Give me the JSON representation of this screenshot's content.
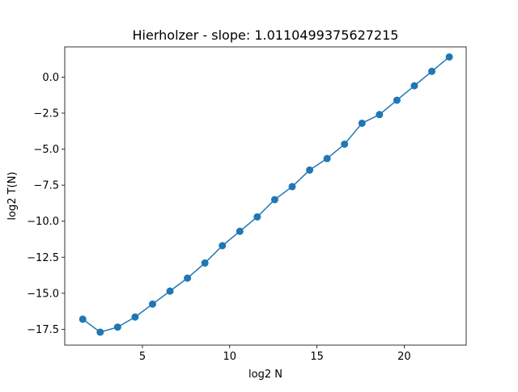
{
  "chart_data": {
    "type": "line",
    "title": "Hierholzer - slope: 1.0110499375627215",
    "xlabel": "log2 N",
    "ylabel": "log2 T(N)",
    "xlim": [
      0.55,
      23.55
    ],
    "ylim": [
      -18.6,
      2.1
    ],
    "xticks": [
      5,
      10,
      15,
      20
    ],
    "yticks": [
      0.0,
      -2.5,
      -5.0,
      -7.5,
      -10.0,
      -12.5,
      -15.0,
      -17.5
    ],
    "xtick_labels": [
      "5",
      "10",
      "15",
      "20"
    ],
    "ytick_labels": [
      "0.0",
      "−2.5",
      "−5.0",
      "−7.5",
      "−10.0",
      "−12.5",
      "−15.0",
      "−17.5"
    ],
    "grid": false,
    "series": [
      {
        "color": "#1f77b4",
        "marker": "circle",
        "x": [
          1.58,
          2.58,
          3.58,
          4.58,
          5.58,
          6.58,
          7.58,
          8.58,
          9.58,
          10.58,
          11.58,
          12.58,
          13.58,
          14.58,
          15.58,
          16.58,
          17.58,
          18.58,
          19.58,
          20.58,
          21.58,
          22.58
        ],
        "y": [
          -16.8,
          -17.7,
          -17.35,
          -16.65,
          -15.75,
          -14.85,
          -13.95,
          -12.9,
          -11.7,
          -10.7,
          -9.7,
          -8.5,
          -7.6,
          -6.45,
          -5.65,
          -4.65,
          -3.2,
          -2.6,
          -1.6,
          -0.6,
          0.4,
          1.4
        ]
      }
    ]
  }
}
